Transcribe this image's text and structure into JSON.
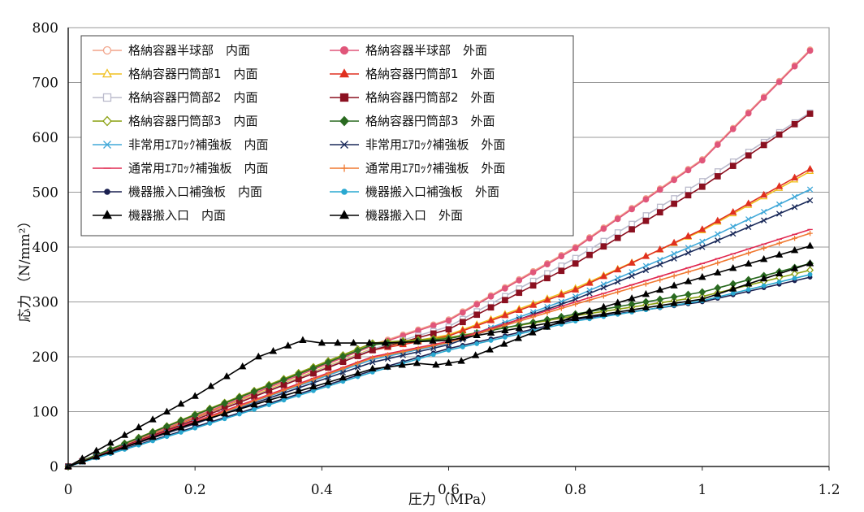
{
  "chart_data": {
    "type": "line",
    "xlabel": "圧力（MPa）",
    "ylabel": "応力 （N/mm²）",
    "xlim": [
      0,
      1.2
    ],
    "ylim": [
      0,
      800
    ],
    "xticks": [
      "0",
      "0.2",
      "0.4",
      "0.6",
      "0.8",
      "1",
      "1.2"
    ],
    "yticks": [
      "0",
      "100",
      "200",
      "300",
      "400",
      "500",
      "600",
      "700",
      "800"
    ],
    "grid": "horizontal",
    "legend_position": "top-left",
    "series": [
      {
        "name": "格納容器半球部　内面",
        "color": "#f2a48a",
        "marker": "circle-open",
        "x": [
          0,
          0.2,
          0.48,
          0.6,
          0.8,
          1.0,
          1.17
        ],
        "y": [
          0,
          92,
          222,
          268,
          400,
          560,
          760
        ]
      },
      {
        "name": "格納容器半球部　外面",
        "color": "#e0567a",
        "marker": "circle",
        "x": [
          0,
          0.2,
          0.48,
          0.6,
          0.8,
          1.0,
          1.17
        ],
        "y": [
          0,
          90,
          220,
          266,
          398,
          558,
          758
        ]
      },
      {
        "name": "格納容器円筒部1　内面",
        "color": "#f0c020",
        "marker": "triangle-open",
        "x": [
          0,
          0.2,
          0.48,
          0.6,
          0.8,
          1.0,
          1.17
        ],
        "y": [
          0,
          88,
          215,
          240,
          325,
          430,
          538
        ]
      },
      {
        "name": "格納容器円筒部1　外面",
        "color": "#e03020",
        "marker": "triangle",
        "x": [
          0,
          0.2,
          0.48,
          0.6,
          0.8,
          1.0,
          1.17
        ],
        "y": [
          0,
          87,
          212,
          238,
          322,
          432,
          542
        ]
      },
      {
        "name": "格納容器円筒部2　内面",
        "color": "#bbbbcc",
        "marker": "square-open",
        "x": [
          0,
          0.2,
          0.48,
          0.6,
          0.8,
          1.0,
          1.17
        ],
        "y": [
          0,
          86,
          214,
          255,
          380,
          520,
          645
        ]
      },
      {
        "name": "格納容器円筒部2　外面",
        "color": "#8b1020",
        "marker": "square",
        "x": [
          0,
          0.2,
          0.48,
          0.6,
          0.8,
          1.0,
          1.17
        ],
        "y": [
          0,
          85,
          212,
          250,
          370,
          510,
          643
        ]
      },
      {
        "name": "格納容器円筒部3　内面",
        "color": "#8aa010",
        "marker": "diamond-open",
        "x": [
          0,
          0.2,
          0.48,
          0.6,
          0.8,
          1.0,
          1.17
        ],
        "y": [
          0,
          95,
          225,
          235,
          275,
          310,
          358
        ]
      },
      {
        "name": "格納容器円筒部3　外面",
        "color": "#2a6a20",
        "marker": "diamond",
        "x": [
          0,
          0.2,
          0.48,
          0.6,
          0.8,
          1.0,
          1.17
        ],
        "y": [
          0,
          94,
          222,
          233,
          278,
          318,
          370
        ]
      },
      {
        "name": "非常用ｴｱﾛｯｸ補強板　内面",
        "color": "#40a8d8",
        "marker": "x",
        "x": [
          0,
          0.2,
          0.48,
          0.6,
          0.8,
          1.0,
          1.17
        ],
        "y": [
          0,
          80,
          195,
          225,
          310,
          410,
          505
        ]
      },
      {
        "name": "非常用ｴｱﾛｯｸ補強板　外面",
        "color": "#1a2a5a",
        "marker": "x",
        "x": [
          0,
          0.2,
          0.48,
          0.6,
          0.8,
          1.0,
          1.17
        ],
        "y": [
          0,
          78,
          190,
          222,
          305,
          400,
          485
        ]
      },
      {
        "name": "通常用ｴｱﾛｯｸ補強板　内面",
        "color": "#e02850",
        "marker": "dash",
        "x": [
          0,
          0.2,
          0.48,
          0.6,
          0.8,
          1.0,
          1.17
        ],
        "y": [
          0,
          82,
          200,
          228,
          300,
          370,
          432
        ]
      },
      {
        "name": "通常用ｴｱﾛｯｸ補強板　外面",
        "color": "#f07830",
        "marker": "plus",
        "x": [
          0,
          0.2,
          0.48,
          0.6,
          0.8,
          1.0,
          1.17
        ],
        "y": [
          0,
          80,
          198,
          226,
          296,
          362,
          425
        ]
      },
      {
        "name": "機器搬入口補強板　内面",
        "color": "#1a2050",
        "marker": "dot",
        "x": [
          0,
          0.2,
          0.48,
          0.6,
          0.8,
          1.0,
          1.17
        ],
        "y": [
          0,
          72,
          175,
          215,
          268,
          300,
          345
        ]
      },
      {
        "name": "機器搬入口補強板　外面",
        "color": "#2aa8d0",
        "marker": "dot",
        "x": [
          0,
          0.2,
          0.48,
          0.6,
          0.8,
          1.0,
          1.17
        ],
        "y": [
          0,
          70,
          172,
          212,
          265,
          302,
          350
        ]
      },
      {
        "name": "機器搬入口　内面",
        "color": "#000000",
        "marker": "triangle",
        "x": [
          0,
          0.2,
          0.3,
          0.37,
          0.4,
          0.5,
          0.6,
          0.8,
          1.0,
          1.17
        ],
        "y": [
          0,
          128,
          200,
          230,
          225,
          225,
          230,
          270,
          305,
          370
        ]
      },
      {
        "name": "機器搬入口　外面",
        "color": "#000000",
        "marker": "triangle",
        "x": [
          0,
          0.2,
          0.48,
          0.55,
          0.58,
          0.62,
          0.8,
          1.0,
          1.17
        ],
        "y": [
          0,
          80,
          178,
          188,
          185,
          192,
          275,
          345,
          402
        ]
      }
    ]
  }
}
